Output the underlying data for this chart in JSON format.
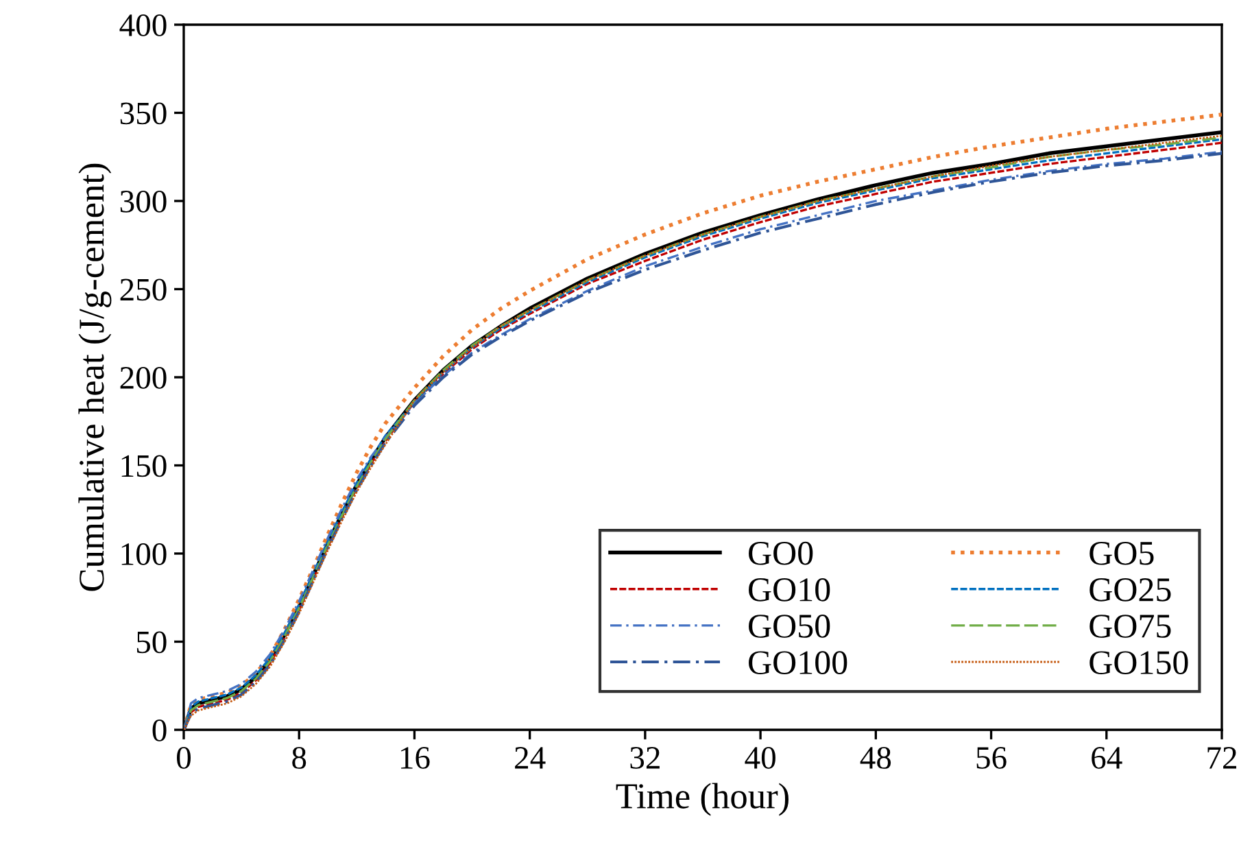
{
  "chart_data": {
    "type": "line",
    "xlabel": "Time (hour)",
    "ylabel": "Cumulative heat (J/g-cement)",
    "x": [
      0,
      0.5,
      1,
      2,
      3,
      4,
      5,
      6,
      7,
      8,
      9,
      10,
      11,
      12,
      13,
      14,
      16,
      18,
      20,
      22,
      24,
      28,
      32,
      36,
      40,
      44,
      48,
      52,
      56,
      60,
      64,
      68,
      72
    ],
    "xlim": [
      0,
      72
    ],
    "xticks": [
      0,
      8,
      16,
      24,
      32,
      40,
      48,
      56,
      64,
      72
    ],
    "ylim": [
      0,
      400
    ],
    "yticks": [
      0,
      50,
      100,
      150,
      200,
      250,
      300,
      350,
      400
    ],
    "grid": false,
    "legend": "bottom right",
    "marker": "none",
    "series": [
      {
        "name": "GO0",
        "color": "#000000",
        "line_style": "solid",
        "values": [
          0,
          12,
          15,
          17,
          19,
          23,
          30,
          40,
          54,
          70,
          88,
          106,
          123,
          139,
          153,
          166,
          187,
          204,
          218,
          229,
          239,
          256,
          270,
          282,
          292,
          301,
          309,
          316,
          321,
          327,
          331,
          335,
          339
        ]
      },
      {
        "name": "GO5",
        "color": "#ed7d31",
        "line_style": "dotted",
        "values": [
          0,
          14,
          17,
          19,
          21,
          25,
          32,
          42,
          57,
          74,
          92,
          111,
          129,
          146,
          161,
          174,
          194,
          212,
          227,
          239,
          249,
          267,
          281,
          293,
          303,
          311,
          318,
          325,
          331,
          336,
          341,
          345,
          349
        ]
      },
      {
        "name": "GO10",
        "color": "#c00000",
        "line_style": "dashed",
        "values": [
          0,
          10,
          13,
          15,
          17,
          21,
          28,
          38,
          52,
          68,
          86,
          104,
          121,
          137,
          151,
          164,
          186,
          202,
          216,
          227,
          236,
          253,
          266,
          278,
          288,
          297,
          304,
          311,
          316,
          321,
          325,
          329,
          333
        ]
      },
      {
        "name": "GO25",
        "color": "#0070c0",
        "line_style": "dashed",
        "values": [
          0,
          13,
          16,
          18,
          20,
          24,
          31,
          41,
          55,
          71,
          89,
          107,
          124,
          140,
          154,
          167,
          186,
          203,
          217,
          228,
          237,
          254,
          268,
          280,
          290,
          299,
          306,
          313,
          318,
          323,
          327,
          331,
          335
        ]
      },
      {
        "name": "GO50",
        "color": "#4472c4",
        "line_style": "dashdot",
        "values": [
          0,
          15,
          18,
          20,
          22,
          26,
          33,
          43,
          57,
          73,
          91,
          109,
          126,
          142,
          155,
          166,
          185,
          201,
          214,
          224,
          233,
          249,
          263,
          274,
          284,
          292,
          300,
          306,
          312,
          317,
          321,
          324,
          328
        ]
      },
      {
        "name": "GO75",
        "color": "#70ad47",
        "line_style": "longdash",
        "values": [
          0,
          11,
          14,
          16,
          18,
          22,
          29,
          39,
          53,
          69,
          87,
          105,
          122,
          138,
          152,
          165,
          187,
          204,
          218,
          229,
          238,
          255,
          269,
          281,
          291,
          300,
          307,
          314,
          319,
          325,
          329,
          332,
          336
        ]
      },
      {
        "name": "GO100",
        "color": "#2f5597",
        "line_style": "longdashdot",
        "values": [
          0,
          9,
          12,
          14,
          16,
          20,
          27,
          37,
          51,
          67,
          85,
          103,
          120,
          136,
          150,
          163,
          184,
          200,
          213,
          223,
          232,
          248,
          261,
          272,
          282,
          290,
          298,
          305,
          311,
          316,
          320,
          323,
          327
        ]
      },
      {
        "name": "GO150",
        "color": "#c55a11",
        "line_style": "finedotted",
        "values": [
          0,
          8,
          11,
          13,
          15,
          19,
          26,
          36,
          50,
          66,
          84,
          102,
          119,
          135,
          149,
          162,
          187,
          203,
          217,
          229,
          238,
          255,
          269,
          281,
          291,
          300,
          307,
          314,
          320,
          325,
          329,
          333,
          337
        ]
      }
    ]
  }
}
